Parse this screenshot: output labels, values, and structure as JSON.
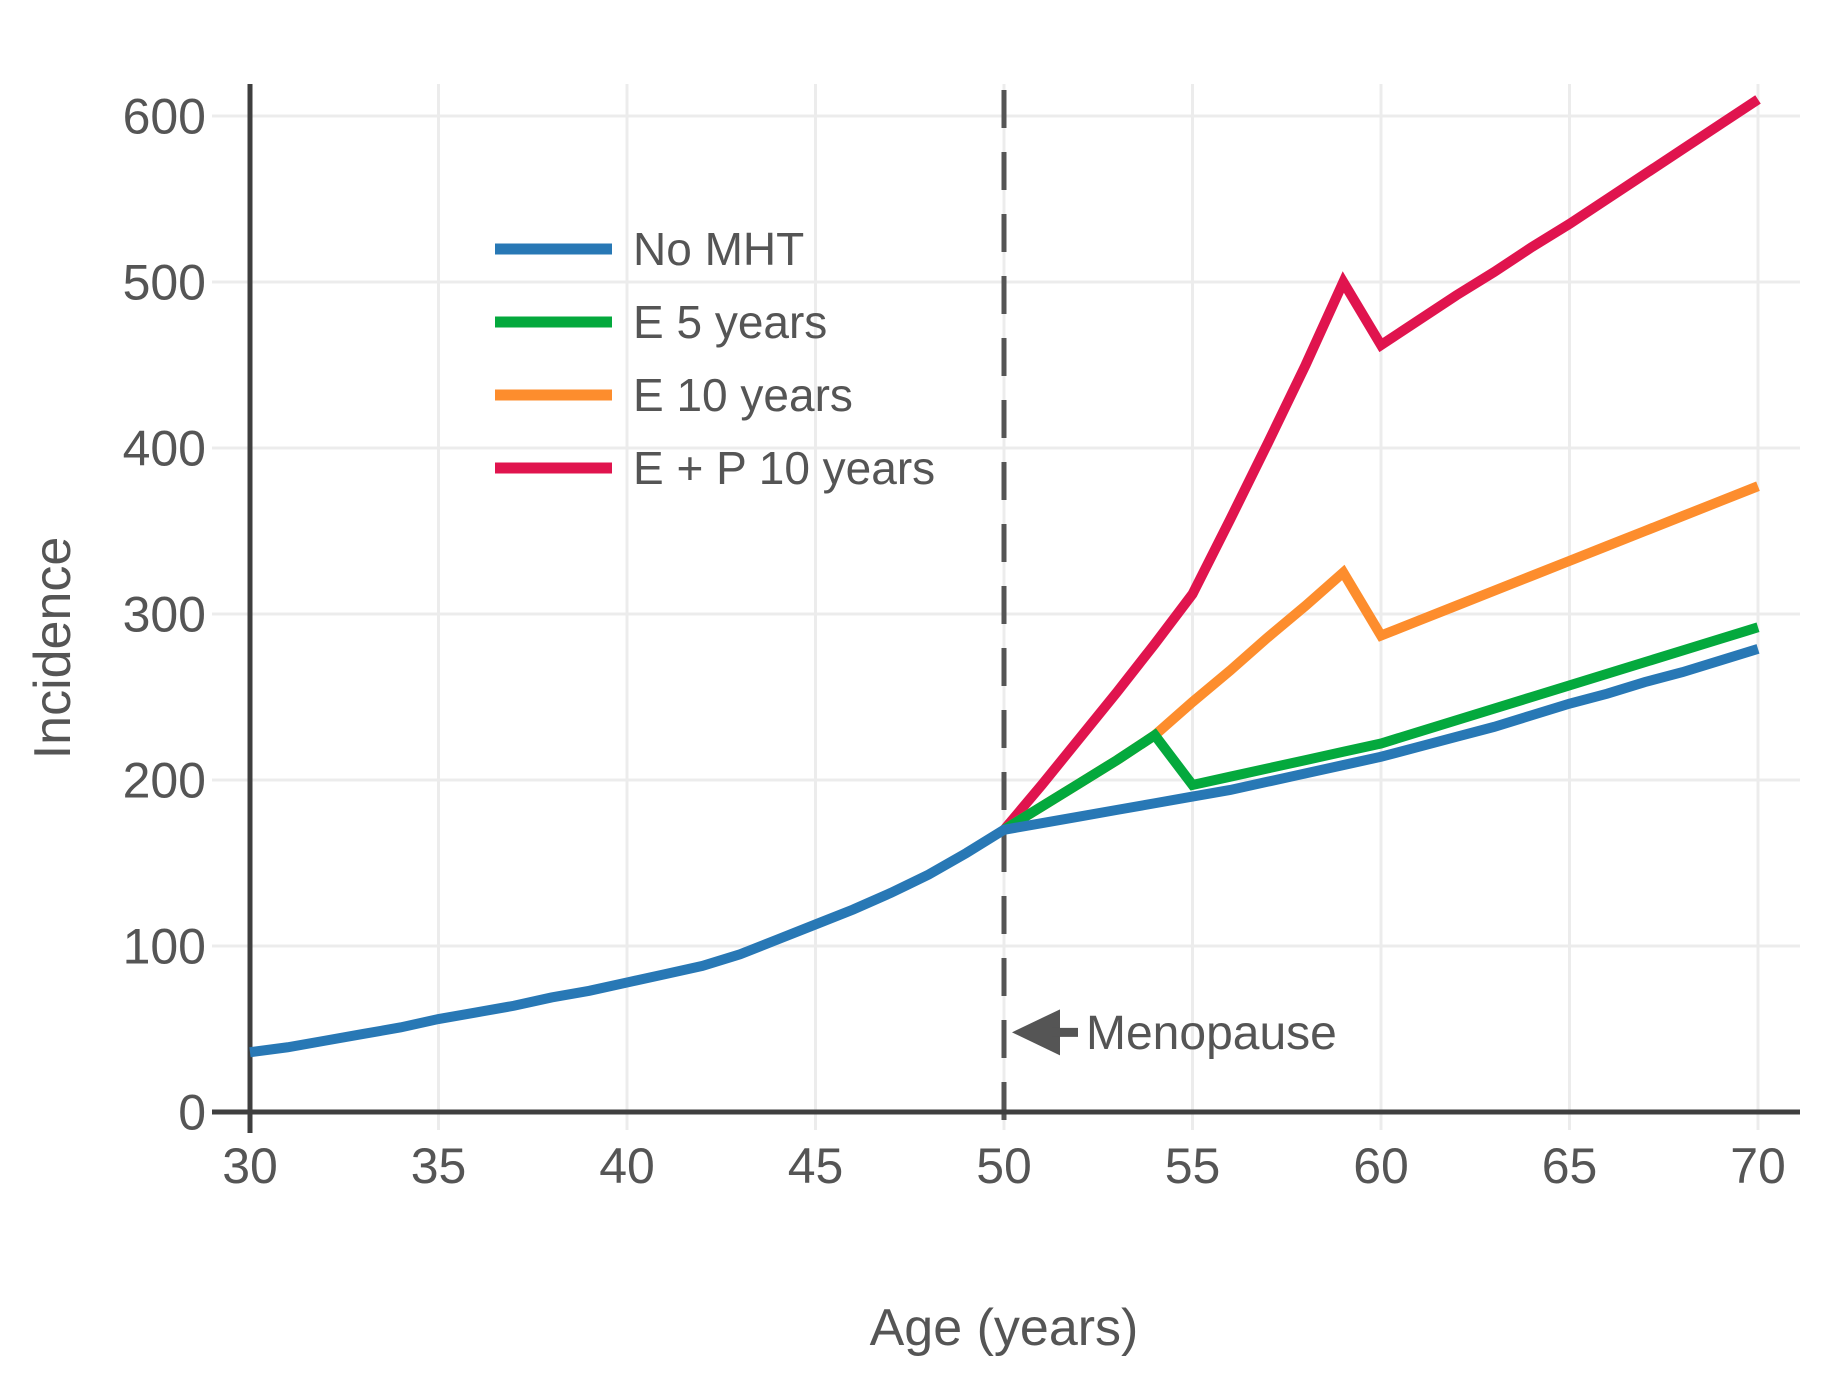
{
  "chart_data": {
    "type": "line",
    "title": "",
    "xlabel": "Age (years)",
    "ylabel": "Incidence",
    "xlim": [
      30,
      70
    ],
    "ylim": [
      0,
      650
    ],
    "x_ticks": [
      30,
      35,
      40,
      45,
      50,
      55,
      60,
      65,
      70
    ],
    "y_ticks": [
      0,
      100,
      200,
      300,
      400,
      500,
      600
    ],
    "grid": true,
    "legend_position": "upper-left-inside",
    "annotation": {
      "label": "Menopause",
      "arrow_direction": "left",
      "x": 50,
      "y": 48
    },
    "reference_line": {
      "x": 50,
      "style": "dashed",
      "color": "#555555"
    },
    "colors": {
      "grid": "#ececec",
      "spine": "#3f3f3f",
      "text": "#555555"
    },
    "series": [
      {
        "name": "No MHT",
        "color": "#2878b5",
        "points": [
          [
            30,
            36
          ],
          [
            31,
            39
          ],
          [
            32,
            43
          ],
          [
            33,
            47
          ],
          [
            34,
            51
          ],
          [
            35,
            56
          ],
          [
            36,
            60
          ],
          [
            37,
            64
          ],
          [
            38,
            69
          ],
          [
            39,
            73
          ],
          [
            40,
            78
          ],
          [
            41,
            83
          ],
          [
            42,
            88
          ],
          [
            43,
            95
          ],
          [
            44,
            104
          ],
          [
            45,
            113
          ],
          [
            46,
            122
          ],
          [
            47,
            132
          ],
          [
            48,
            143
          ],
          [
            49,
            156
          ],
          [
            50,
            170
          ],
          [
            51,
            174
          ],
          [
            52,
            178
          ],
          [
            53,
            182
          ],
          [
            54,
            186
          ],
          [
            55,
            190
          ],
          [
            56,
            194
          ],
          [
            57,
            199
          ],
          [
            58,
            204
          ],
          [
            59,
            209
          ],
          [
            60,
            214
          ],
          [
            61,
            220
          ],
          [
            62,
            226
          ],
          [
            63,
            232
          ],
          [
            64,
            239
          ],
          [
            65,
            246
          ],
          [
            66,
            252
          ],
          [
            67,
            259
          ],
          [
            68,
            265
          ],
          [
            69,
            272
          ],
          [
            70,
            279
          ]
        ]
      },
      {
        "name": "E 5 years",
        "color": "#04a93d",
        "points": [
          [
            50,
            170
          ],
          [
            51,
            184
          ],
          [
            52,
            198
          ],
          [
            53,
            212
          ],
          [
            54,
            227
          ],
          [
            55,
            197
          ],
          [
            56,
            202
          ],
          [
            57,
            207
          ],
          [
            58,
            212
          ],
          [
            59,
            217
          ],
          [
            60,
            222
          ],
          [
            61,
            229
          ],
          [
            62,
            236
          ],
          [
            63,
            243
          ],
          [
            64,
            250
          ],
          [
            65,
            257
          ],
          [
            66,
            264
          ],
          [
            67,
            271
          ],
          [
            68,
            278
          ],
          [
            69,
            285
          ],
          [
            70,
            292
          ]
        ]
      },
      {
        "name": "E 10 years",
        "color": "#fd8d2d",
        "points": [
          [
            50,
            170
          ],
          [
            51,
            184
          ],
          [
            52,
            198
          ],
          [
            53,
            212
          ],
          [
            54,
            227
          ],
          [
            55,
            247
          ],
          [
            56,
            266
          ],
          [
            57,
            286
          ],
          [
            58,
            305
          ],
          [
            59,
            325
          ],
          [
            60,
            287
          ],
          [
            61,
            296
          ],
          [
            62,
            305
          ],
          [
            63,
            314
          ],
          [
            64,
            323
          ],
          [
            65,
            332
          ],
          [
            66,
            341
          ],
          [
            67,
            350
          ],
          [
            68,
            359
          ],
          [
            69,
            368
          ],
          [
            70,
            377
          ]
        ]
      },
      {
        "name": "E + P 10 years",
        "color": "#e0144e",
        "points": [
          [
            50,
            170
          ],
          [
            51,
            197
          ],
          [
            52,
            225
          ],
          [
            53,
            253
          ],
          [
            54,
            282
          ],
          [
            55,
            312
          ],
          [
            56,
            357
          ],
          [
            57,
            403
          ],
          [
            58,
            450
          ],
          [
            59,
            500
          ],
          [
            60,
            462
          ],
          [
            61,
            477
          ],
          [
            62,
            492
          ],
          [
            63,
            506
          ],
          [
            64,
            521
          ],
          [
            65,
            535
          ],
          [
            66,
            550
          ],
          [
            67,
            565
          ],
          [
            68,
            580
          ],
          [
            69,
            595
          ],
          [
            70,
            610
          ]
        ]
      }
    ]
  }
}
